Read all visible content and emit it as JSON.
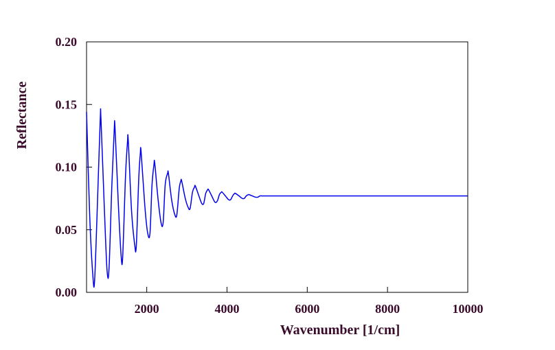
{
  "chart_data": {
    "type": "line",
    "title": "",
    "xlabel": "Wavenumber [1/cm]",
    "ylabel": "Reflectance",
    "xlim": [
      500,
      10000
    ],
    "ylim": [
      0.0,
      0.2
    ],
    "x_ticks": [
      2000,
      4000,
      6000,
      8000,
      10000
    ],
    "x_tick_labels": [
      "2000",
      "4000",
      "6000",
      "8000",
      "10000"
    ],
    "y_ticks": [
      0.0,
      0.05,
      0.1,
      0.15,
      0.2
    ],
    "y_tick_labels": [
      "0.00",
      "0.05",
      "0.10",
      "0.15",
      "0.20"
    ],
    "grid": false,
    "legend": "none",
    "series": [
      {
        "color": "#0000ee",
        "x": [
          500,
          580,
          660,
          700,
          760,
          840,
          860,
          940,
          1010,
          1060,
          1130,
          1190,
          1210,
          1290,
          1360,
          1400,
          1470,
          1520,
          1540,
          1620,
          1700,
          1740,
          1800,
          1840,
          1860,
          1950,
          2020,
          2080,
          2130,
          2180,
          2200,
          2280,
          2360,
          2410,
          2460,
          2520,
          2540,
          2620,
          2700,
          2750,
          2810,
          2850,
          2870,
          2960,
          3030,
          3080,
          3140,
          3190,
          3210,
          3300,
          3370,
          3420,
          3470,
          3520,
          3540,
          3620,
          3700,
          3760,
          3810,
          3860,
          3880,
          3960,
          4040,
          4090,
          4140,
          4190,
          4210,
          4300,
          4380,
          4430,
          4480,
          4530,
          4550,
          4630,
          4710,
          4770,
          4820,
          4870,
          4900,
          5000,
          5200,
          5600,
          6000,
          7000,
          8000,
          9000,
          10000
        ],
        "y": [
          0.144,
          0.06,
          0.012,
          0.009,
          0.06,
          0.137,
          0.138,
          0.07,
          0.018,
          0.019,
          0.085,
          0.13,
          0.131,
          0.072,
          0.03,
          0.028,
          0.092,
          0.12,
          0.121,
          0.066,
          0.038,
          0.037,
          0.09,
          0.111,
          0.112,
          0.07,
          0.048,
          0.047,
          0.085,
          0.102,
          0.103,
          0.075,
          0.055,
          0.056,
          0.086,
          0.095,
          0.095,
          0.074,
          0.062,
          0.062,
          0.083,
          0.089,
          0.089,
          0.075,
          0.068,
          0.067,
          0.08,
          0.084,
          0.085,
          0.077,
          0.071,
          0.071,
          0.079,
          0.082,
          0.082,
          0.077,
          0.072,
          0.073,
          0.078,
          0.08,
          0.08,
          0.077,
          0.074,
          0.074,
          0.077,
          0.079,
          0.079,
          0.077,
          0.075,
          0.075,
          0.077,
          0.078,
          0.078,
          0.077,
          0.076,
          0.076,
          0.077,
          0.077,
          0.077,
          0.077,
          0.077,
          0.077,
          0.077,
          0.077,
          0.077,
          0.077,
          0.077
        ]
      }
    ]
  }
}
